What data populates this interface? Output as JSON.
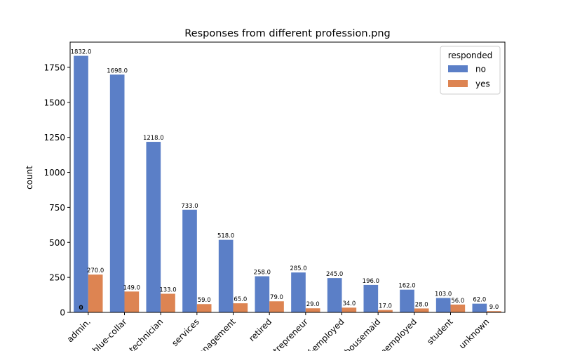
{
  "chart_data": {
    "type": "bar",
    "title": "Responses from different profession.png",
    "xlabel": "",
    "ylabel": "count",
    "ylim": [
      0,
      1930
    ],
    "yticks": [
      0,
      250,
      500,
      750,
      1000,
      1250,
      1500,
      1750
    ],
    "grid": false,
    "legend": {
      "title": "responded",
      "placement": "top-right"
    },
    "categories": [
      "admin.",
      "blue-collar",
      "technician",
      "services",
      "management",
      "retired",
      "entrepreneur",
      "self-employed",
      "housemaid",
      "unemployed",
      "student",
      "unknown"
    ],
    "series": [
      {
        "name": "no",
        "color": "#5b7fc7",
        "values": [
          1832,
          1698,
          1218,
          733,
          518,
          258,
          285,
          245,
          196,
          162,
          103,
          62
        ],
        "labels": [
          "1832.0",
          "1698.0",
          "1218.0",
          "733.0",
          "518.0",
          "258.0",
          "285.0",
          "245.0",
          "196.0",
          "162.0",
          "103.0",
          "62.0"
        ]
      },
      {
        "name": "yes",
        "color": "#dd8452",
        "values": [
          270,
          149,
          133,
          59,
          65,
          79,
          29,
          34,
          17,
          28,
          56,
          9
        ],
        "labels": [
          "270.0",
          "149.0",
          "133.0",
          "59.0",
          "65.0",
          "79.0",
          "29.0",
          "34.0",
          "17.0",
          "28.0",
          "56.0",
          "9.0"
        ]
      }
    ],
    "annotations": [
      {
        "text": "0",
        "category": "admin.",
        "value": 0
      }
    ]
  }
}
